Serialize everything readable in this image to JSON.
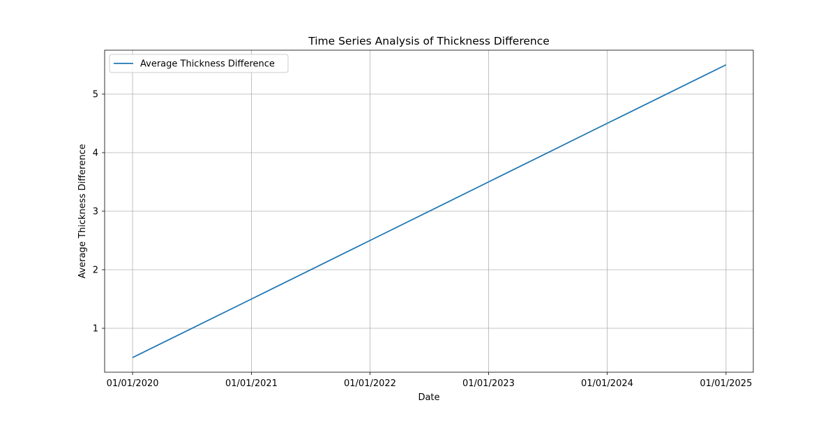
{
  "chart_data": {
    "type": "line",
    "title": "Time Series Analysis of Thickness Difference",
    "xlabel": "Date",
    "ylabel": "Average Thickness Difference",
    "x": [
      "2020-01-01",
      "2021-01-01",
      "2022-01-01",
      "2023-01-01",
      "2024-01-01",
      "2025-01-01"
    ],
    "x_tick_labels": [
      "01/01/2020",
      "01/01/2021",
      "01/01/2022",
      "01/01/2023",
      "01/01/2024",
      "01/01/2025"
    ],
    "y_ticks": [
      1,
      2,
      3,
      4,
      5
    ],
    "ylim": [
      0.25,
      5.75
    ],
    "xlim": [
      "2019-10-07",
      "2025-03-26"
    ],
    "grid": true,
    "legend_position": "upper left",
    "series": [
      {
        "name": "Average Thickness Difference",
        "color": "#1f77b4",
        "values": [
          0.5,
          1.5,
          2.5,
          3.5,
          4.5,
          5.5
        ]
      }
    ]
  }
}
